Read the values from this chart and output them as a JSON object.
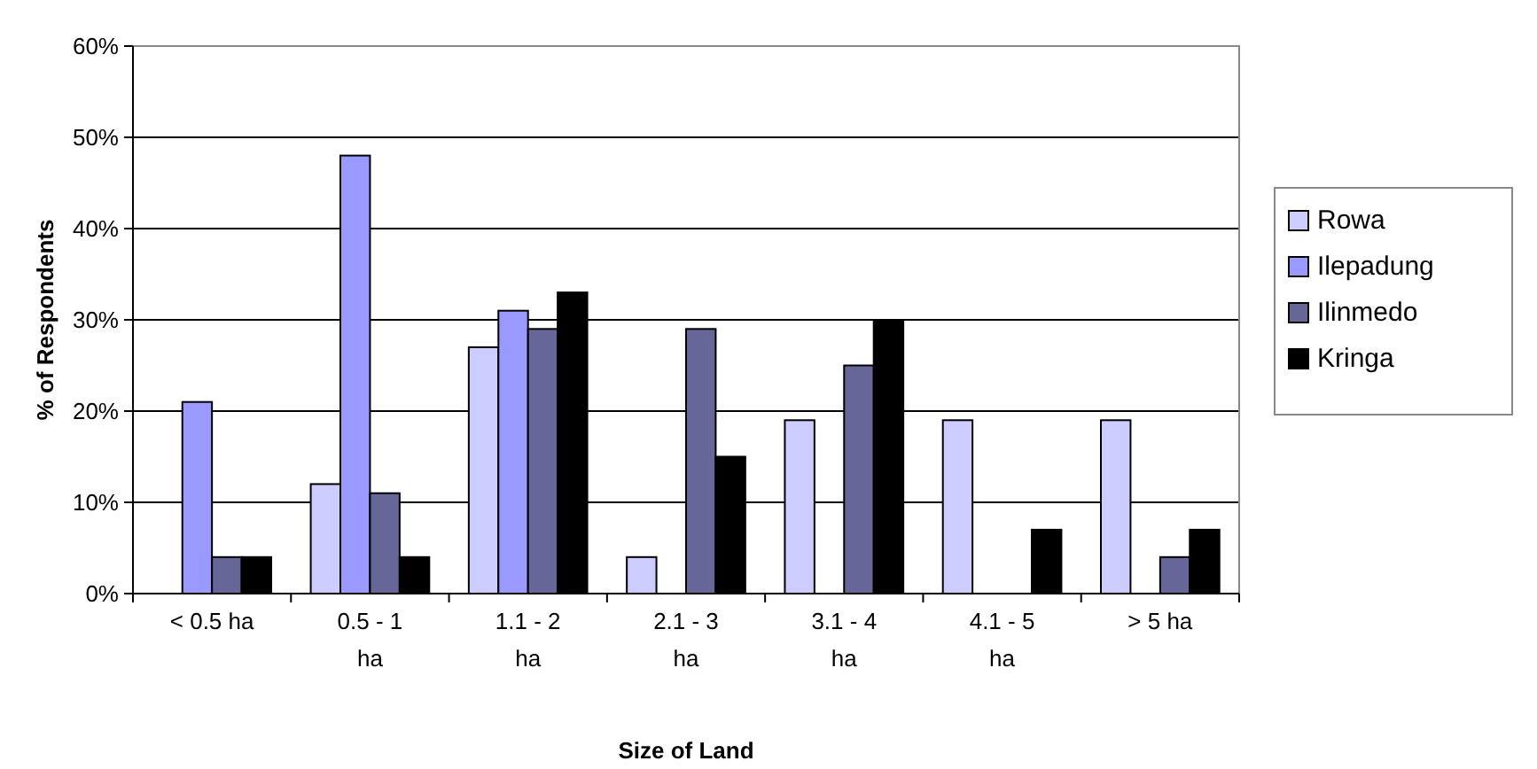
{
  "chart_data": {
    "type": "bar",
    "xlabel": "Size of Land",
    "ylabel": "% of Respondents",
    "categories": [
      "< 0.5 ha",
      "0.5 - 1 ha",
      "1.1 - 2 ha",
      "2.1 - 3 ha",
      "3.1 - 4 ha",
      "4.1 - 5 ha",
      "> 5 ha"
    ],
    "series": [
      {
        "name": "Rowa",
        "color": "#ccccff",
        "values": [
          0,
          12,
          27,
          4,
          19,
          19,
          19
        ]
      },
      {
        "name": "Ilepadung",
        "color": "#9999ff",
        "values": [
          21,
          48,
          31,
          0,
          0,
          0,
          0
        ]
      },
      {
        "name": "Ilinmedo",
        "color": "#666699",
        "values": [
          4,
          11,
          29,
          29,
          25,
          0,
          4
        ]
      },
      {
        "name": "Kringa",
        "color": "#000000",
        "values": [
          4,
          4,
          33,
          15,
          30,
          7,
          7
        ]
      }
    ],
    "ylim": [
      0,
      60
    ],
    "yticks": [
      {
        "value": 0,
        "label": "0%"
      },
      {
        "value": 10,
        "label": "10%"
      },
      {
        "value": 20,
        "label": "20%"
      },
      {
        "value": 30,
        "label": "30%"
      },
      {
        "value": 40,
        "label": "40%"
      },
      {
        "value": 50,
        "label": "50%"
      },
      {
        "value": 60,
        "label": "60%"
      }
    ],
    "grid": "y",
    "legend": "right"
  }
}
